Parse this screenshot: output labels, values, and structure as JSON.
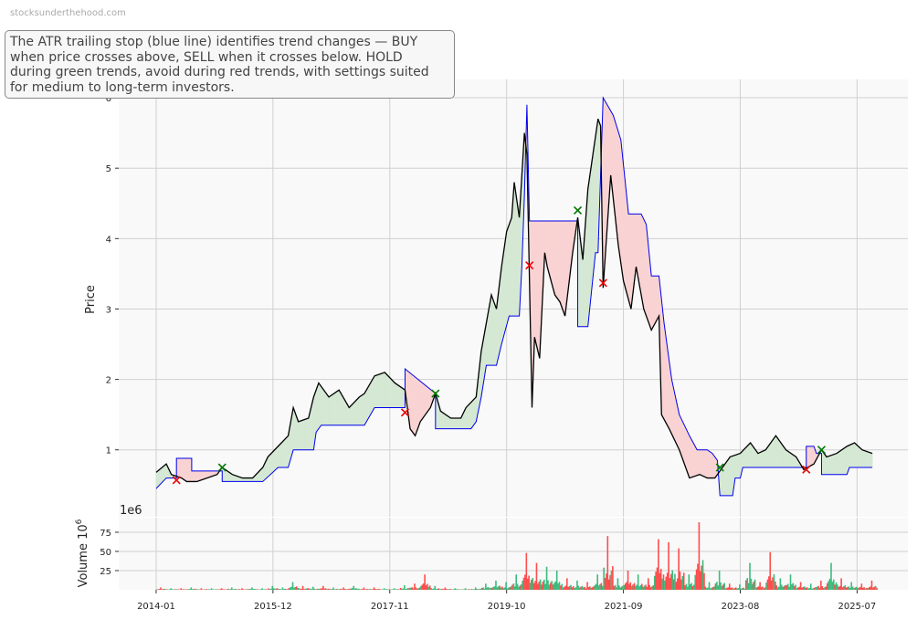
{
  "watermark": "stocksunderthehood.com",
  "annotation": "The ATR trailing stop (blue line) identifies trend changes — BUY when price crosses above, SELL when it crosses below. HOLD during green trends, avoid during red trends, with settings suited for medium to long-term investors.",
  "chart_data": {
    "type": "line",
    "xlabel": "",
    "x_ticks": [
      "2014-01",
      "2015-12",
      "2017-11",
      "2019-10",
      "2021-09",
      "2023-08",
      "2025-07"
    ],
    "xlim": [
      "2013-05-20",
      "2026-05-01"
    ],
    "grid": true,
    "colors": {
      "price": "#000000",
      "stop": "#0000ee",
      "up_fill": "#d4e8d4",
      "down_fill": "#f9d3d3",
      "buy": "#007700",
      "sell": "#ee0000",
      "vol_up": "#3dbb7e",
      "vol_down": "#ff4d4d",
      "bg": "#f9f9f9"
    },
    "price_panel": {
      "ylabel": "Price",
      "ylim": [
        0.05,
        6.26
      ],
      "y_ticks": [
        1,
        2,
        3,
        4,
        5,
        6
      ],
      "price": [
        [
          "2014-01-01",
          0.68
        ],
        [
          "2014-03-01",
          0.8
        ],
        [
          "2014-04-01",
          0.65
        ],
        [
          "2014-06-01",
          0.6
        ],
        [
          "2014-07-01",
          0.55
        ],
        [
          "2014-09-01",
          0.55
        ],
        [
          "2014-11-01",
          0.6
        ],
        [
          "2015-01-01",
          0.65
        ],
        [
          "2015-02-01",
          0.75
        ],
        [
          "2015-04-01",
          0.65
        ],
        [
          "2015-06-01",
          0.6
        ],
        [
          "2015-08-01",
          0.6
        ],
        [
          "2015-10-01",
          0.75
        ],
        [
          "2015-11-01",
          0.9
        ],
        [
          "2016-01-01",
          1.05
        ],
        [
          "2016-03-01",
          1.2
        ],
        [
          "2016-04-01",
          1.6
        ],
        [
          "2016-05-01",
          1.4
        ],
        [
          "2016-07-01",
          1.45
        ],
        [
          "2016-08-01",
          1.75
        ],
        [
          "2016-09-01",
          1.95
        ],
        [
          "2016-11-01",
          1.75
        ],
        [
          "2017-01-01",
          1.85
        ],
        [
          "2017-03-01",
          1.6
        ],
        [
          "2017-05-01",
          1.75
        ],
        [
          "2017-06-01",
          1.8
        ],
        [
          "2017-08-01",
          2.05
        ],
        [
          "2017-10-01",
          2.1
        ],
        [
          "2017-12-01",
          1.95
        ],
        [
          "2018-02-01",
          1.85
        ],
        [
          "2018-03-01",
          1.3
        ],
        [
          "2018-04-01",
          1.2
        ],
        [
          "2018-05-01",
          1.4
        ],
        [
          "2018-07-01",
          1.6
        ],
        [
          "2018-08-01",
          1.8
        ],
        [
          "2018-09-01",
          1.55
        ],
        [
          "2018-11-01",
          1.45
        ],
        [
          "2019-01-01",
          1.45
        ],
        [
          "2019-02-01",
          1.6
        ],
        [
          "2019-04-01",
          1.75
        ],
        [
          "2019-05-01",
          2.4
        ],
        [
          "2019-06-01",
          2.8
        ],
        [
          "2019-07-01",
          3.2
        ],
        [
          "2019-08-01",
          3.0
        ],
        [
          "2019-09-01",
          3.6
        ],
        [
          "2019-10-01",
          4.1
        ],
        [
          "2019-11-01",
          4.3
        ],
        [
          "2019-11-16",
          4.8
        ],
        [
          "2019-12-16",
          4.3
        ],
        [
          "2020-01-16",
          5.5
        ],
        [
          "2020-02-01",
          5.2
        ],
        [
          "2020-03-01",
          1.6
        ],
        [
          "2020-03-16",
          2.6
        ],
        [
          "2020-04-16",
          2.3
        ],
        [
          "2020-05-16",
          3.8
        ],
        [
          "2020-06-01",
          3.6
        ],
        [
          "2020-07-16",
          3.2
        ],
        [
          "2020-08-16",
          3.1
        ],
        [
          "2020-09-16",
          2.9
        ],
        [
          "2020-10-16",
          3.5
        ],
        [
          "2020-11-01",
          3.8
        ],
        [
          "2020-12-01",
          4.3
        ],
        [
          "2021-01-01",
          3.7
        ],
        [
          "2021-02-01",
          4.7
        ],
        [
          "2021-03-01",
          5.2
        ],
        [
          "2021-04-01",
          5.7
        ],
        [
          "2021-04-16",
          5.6
        ],
        [
          "2021-05-01",
          3.3
        ],
        [
          "2021-06-16",
          4.9
        ],
        [
          "2021-08-01",
          3.9
        ],
        [
          "2021-09-01",
          3.4
        ],
        [
          "2021-10-16",
          3.0
        ],
        [
          "2021-11-16",
          3.6
        ],
        [
          "2022-01-01",
          3.0
        ],
        [
          "2022-02-16",
          2.7
        ],
        [
          "2022-04-01",
          2.9
        ],
        [
          "2022-04-16",
          1.5
        ],
        [
          "2022-06-01",
          1.3
        ],
        [
          "2022-08-01",
          1.0
        ],
        [
          "2022-10-01",
          0.6
        ],
        [
          "2022-12-01",
          0.65
        ],
        [
          "2023-01-16",
          0.6
        ],
        [
          "2023-03-01",
          0.6
        ],
        [
          "2023-04-01",
          0.7
        ],
        [
          "2023-06-01",
          0.9
        ],
        [
          "2023-08-01",
          0.95
        ],
        [
          "2023-10-01",
          1.1
        ],
        [
          "2023-11-16",
          0.95
        ],
        [
          "2024-01-01",
          1.0
        ],
        [
          "2024-03-01",
          1.2
        ],
        [
          "2024-05-01",
          1.0
        ],
        [
          "2024-07-01",
          0.9
        ],
        [
          "2024-08-16",
          0.72
        ],
        [
          "2024-10-16",
          0.8
        ],
        [
          "2024-12-01",
          1.0
        ],
        [
          "2025-01-01",
          0.9
        ],
        [
          "2025-03-01",
          0.95
        ],
        [
          "2025-05-01",
          1.05
        ],
        [
          "2025-06-16",
          1.1
        ],
        [
          "2025-08-01",
          1.0
        ],
        [
          "2025-10-01",
          0.95
        ]
      ],
      "atr_stop": [
        [
          "2014-01-01",
          0.45
        ],
        [
          "2014-03-01",
          0.6
        ],
        [
          "2014-05-01",
          0.6
        ],
        [
          "2014-05-01",
          0.88
        ],
        [
          "2014-08-01",
          0.88
        ],
        [
          "2014-08-01",
          0.7
        ],
        [
          "2015-02-01",
          0.7
        ],
        [
          "2015-02-01",
          0.55
        ],
        [
          "2015-10-01",
          0.55
        ],
        [
          "2016-01-01",
          0.75
        ],
        [
          "2016-03-01",
          0.75
        ],
        [
          "2016-04-01",
          1.0
        ],
        [
          "2016-08-01",
          1.0
        ],
        [
          "2016-08-16",
          1.25
        ],
        [
          "2016-09-16",
          1.35
        ],
        [
          "2017-06-01",
          1.35
        ],
        [
          "2017-08-01",
          1.6
        ],
        [
          "2018-02-01",
          1.6
        ],
        [
          "2018-02-01",
          2.15
        ],
        [
          "2018-08-01",
          1.8
        ],
        [
          "2018-08-01",
          1.3
        ],
        [
          "2019-03-01",
          1.3
        ],
        [
          "2019-04-01",
          1.4
        ],
        [
          "2019-05-01",
          1.75
        ],
        [
          "2019-06-01",
          2.2
        ],
        [
          "2019-08-01",
          2.2
        ],
        [
          "2019-09-01",
          2.5
        ],
        [
          "2019-10-16",
          2.9
        ],
        [
          "2019-12-16",
          2.9
        ],
        [
          "2020-01-01",
          3.6
        ],
        [
          "2020-01-16",
          4.6
        ],
        [
          "2020-02-01",
          5.9
        ],
        [
          "2020-02-16",
          4.25
        ],
        [
          "2020-12-01",
          4.25
        ],
        [
          "2020-12-01",
          2.75
        ],
        [
          "2021-02-01",
          2.75
        ],
        [
          "2021-03-16",
          3.8
        ],
        [
          "2021-04-01",
          3.8
        ],
        [
          "2021-05-01",
          6.0
        ],
        [
          "2021-07-01",
          5.75
        ],
        [
          "2021-08-16",
          5.4
        ],
        [
          "2021-10-01",
          4.35
        ],
        [
          "2021-12-16",
          4.35
        ],
        [
          "2022-01-16",
          4.2
        ],
        [
          "2022-02-16",
          3.47
        ],
        [
          "2022-04-01",
          3.47
        ],
        [
          "2022-05-01",
          2.8
        ],
        [
          "2022-06-16",
          2.0
        ],
        [
          "2022-08-01",
          1.5
        ],
        [
          "2022-10-01",
          1.2
        ],
        [
          "2022-11-16",
          1.0
        ],
        [
          "2023-01-16",
          1.0
        ],
        [
          "2023-02-16",
          0.95
        ],
        [
          "2023-03-16",
          0.85
        ],
        [
          "2023-04-01",
          0.35
        ],
        [
          "2023-06-16",
          0.35
        ],
        [
          "2023-07-01",
          0.6
        ],
        [
          "2023-08-01",
          0.6
        ],
        [
          "2023-08-16",
          0.75
        ],
        [
          "2024-09-01",
          0.75
        ],
        [
          "2024-09-01",
          1.05
        ],
        [
          "2024-10-16",
          1.05
        ],
        [
          "2024-11-01",
          0.95
        ],
        [
          "2024-12-01",
          0.95
        ],
        [
          "2024-12-01",
          0.65
        ],
        [
          "2025-05-01",
          0.65
        ],
        [
          "2025-05-16",
          0.75
        ],
        [
          "2025-10-01",
          0.75
        ]
      ],
      "buy_signals": [
        [
          "2015-02-01",
          0.75
        ],
        [
          "2018-08-01",
          1.8
        ],
        [
          "2020-12-01",
          4.4
        ],
        [
          "2023-04-01",
          0.75
        ],
        [
          "2024-12-01",
          1.0
        ]
      ],
      "sell_signals": [
        [
          "2014-05-01",
          0.57
        ],
        [
          "2018-02-01",
          1.53
        ],
        [
          "2020-02-16",
          3.62
        ],
        [
          "2021-05-01",
          3.37
        ],
        [
          "2024-09-01",
          0.72
        ]
      ]
    },
    "volume_panel": {
      "ylabel": "Volume",
      "unit_label": "10",
      "unit_exp": "6",
      "offset_text": "1e6",
      "ylim": [
        0,
        94
      ],
      "y_ticks": [
        25,
        50,
        75
      ],
      "start": "2014-01-01",
      "step_months": 2,
      "values": [
        3,
        2,
        2,
        3,
        2,
        2,
        2,
        3,
        2,
        3,
        2,
        5,
        3,
        10,
        5,
        4,
        5,
        3,
        3,
        5,
        3,
        3,
        2,
        2,
        6,
        8,
        20,
        5,
        3,
        2,
        2,
        3,
        8,
        12,
        10,
        20,
        48,
        35,
        30,
        25,
        15,
        12,
        10,
        20,
        70,
        15,
        25,
        20,
        15,
        66,
        62,
        54,
        20,
        88,
        10,
        25,
        8,
        7,
        35,
        10,
        49,
        15,
        20,
        10,
        8,
        12,
        35,
        15,
        10,
        8,
        12
      ],
      "direction": [
        "down",
        "up",
        "down",
        "up",
        "down",
        "up",
        "down",
        "up",
        "down",
        "up",
        "up",
        "up",
        "up",
        "up",
        "down",
        "up",
        "down",
        "up",
        "down",
        "up",
        "down",
        "down",
        "up",
        "up",
        "up",
        "down",
        "down",
        "up",
        "down",
        "up",
        "up",
        "up",
        "up",
        "up",
        "up",
        "up",
        "down",
        "down",
        "up",
        "up",
        "down",
        "up",
        "down",
        "up",
        "down",
        "up",
        "down",
        "up",
        "down",
        "down",
        "down",
        "down",
        "up",
        "down",
        "up",
        "up",
        "down",
        "up",
        "up",
        "down",
        "down",
        "up",
        "up",
        "down",
        "up",
        "down",
        "up",
        "down",
        "up",
        "down",
        "down"
      ]
    }
  }
}
